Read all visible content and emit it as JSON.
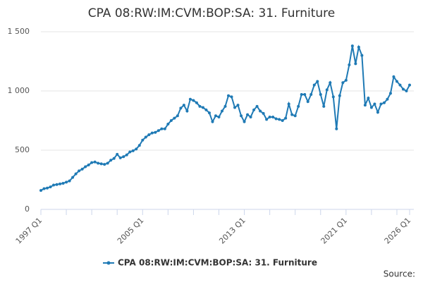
{
  "chart_data": {
    "type": "line",
    "title": "CPA 08:RW:IM:CVM:BOP:SA: 31. Furniture",
    "source": "Source:",
    "categories": [
      "1997 Q1",
      null,
      null,
      null,
      null,
      null,
      null,
      null,
      null,
      null,
      null,
      null,
      null,
      null,
      null,
      null,
      null,
      null,
      null,
      null,
      null,
      null,
      null,
      null,
      null,
      null,
      null,
      null,
      null,
      null,
      null,
      null,
      "2005 Q1",
      null,
      null,
      null,
      null,
      null,
      null,
      null,
      null,
      null,
      null,
      null,
      null,
      null,
      null,
      null,
      null,
      null,
      null,
      null,
      null,
      null,
      null,
      null,
      null,
      null,
      null,
      null,
      null,
      null,
      null,
      null,
      "2013 Q1",
      null,
      null,
      null,
      null,
      null,
      null,
      null,
      null,
      null,
      null,
      null,
      null,
      null,
      null,
      null,
      null,
      null,
      null,
      null,
      null,
      null,
      null,
      null,
      null,
      null,
      null,
      null,
      null,
      null,
      null,
      null,
      "2021 Q1",
      null,
      null,
      null,
      null,
      null,
      null,
      null,
      null,
      null,
      null,
      null,
      null,
      null,
      null,
      null,
      null,
      null,
      null,
      null,
      "2026 Q1"
    ],
    "series": [
      {
        "name": "CPA 08:RW:IM:CVM:BOP:SA: 31. Furniture",
        "color": "#1f7ab5",
        "values": [
          160,
          175,
          180,
          190,
          205,
          210,
          215,
          220,
          230,
          240,
          270,
          300,
          325,
          340,
          360,
          375,
          395,
          400,
          390,
          385,
          380,
          390,
          415,
          430,
          465,
          435,
          445,
          460,
          485,
          495,
          510,
          540,
          585,
          610,
          630,
          645,
          650,
          665,
          680,
          680,
          720,
          750,
          770,
          790,
          855,
          880,
          830,
          930,
          920,
          900,
          870,
          860,
          840,
          815,
          740,
          790,
          780,
          830,
          870,
          960,
          950,
          860,
          880,
          790,
          740,
          800,
          780,
          840,
          870,
          830,
          810,
          760,
          780,
          780,
          765,
          760,
          750,
          770,
          890,
          800,
          790,
          870,
          970,
          970,
          910,
          970,
          1050,
          1080,
          970,
          870,
          1010,
          1070,
          950,
          680,
          960,
          1070,
          1090,
          1220,
          1380,
          1230,
          1370,
          1300,
          880,
          940,
          860,
          890,
          820,
          890,
          900,
          930,
          980,
          1120,
          1080,
          1050,
          1015,
          1000,
          1050
        ]
      }
    ],
    "ylim": [
      0,
      1500
    ],
    "yticks": [
      0,
      500,
      {
        "value": 1000,
        "label": "1 000"
      },
      {
        "value": 1500,
        "label": "1 500"
      }
    ],
    "grid": true,
    "legend": "bottom"
  }
}
